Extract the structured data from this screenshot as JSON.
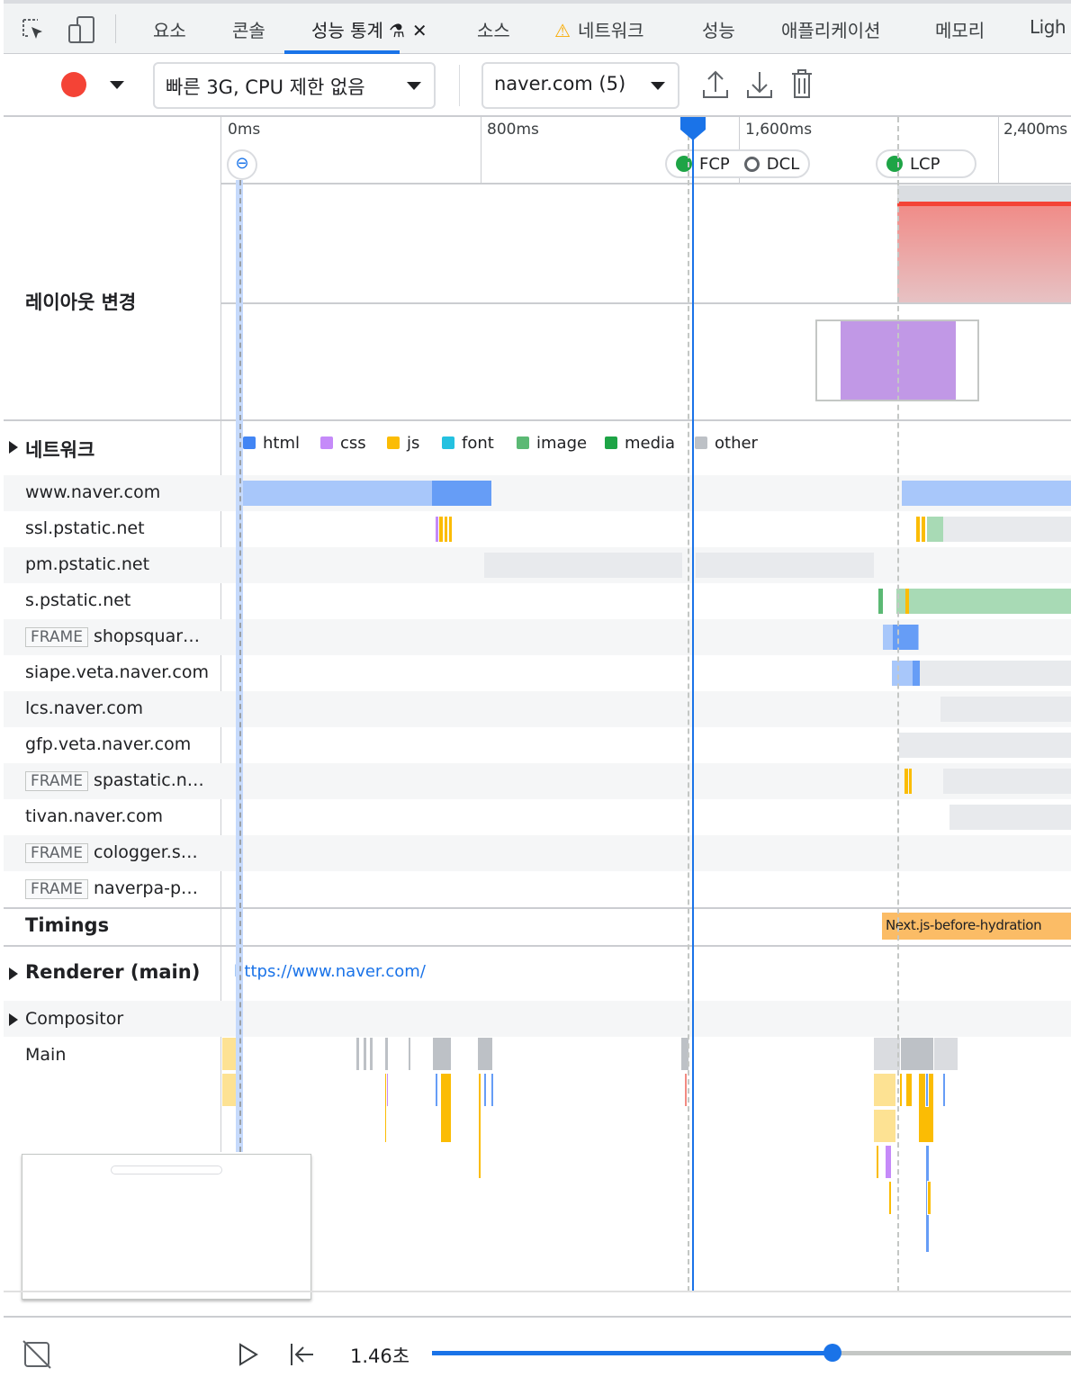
{
  "tabs": [
    {
      "label": "요소"
    },
    {
      "label": "콘솔"
    },
    {
      "label": "성능 통계",
      "active": true
    },
    {
      "label": "소스"
    },
    {
      "label": "네트워크",
      "warning": true
    },
    {
      "label": "성능"
    },
    {
      "label": "애플리케이션"
    },
    {
      "label": "메모리"
    },
    {
      "label": "Ligh"
    }
  ],
  "toolbar": {
    "throttle": "빠른 3G, CPU 제한 없음",
    "recording": "naver.com (5)",
    "record_color": "#f44336"
  },
  "ruler": {
    "ticks": [
      "0ms",
      "800ms",
      "1,600ms",
      "2,400ms"
    ],
    "markers": {
      "fcp": "FCP",
      "dcl": "DCL",
      "lcp": "LCP"
    }
  },
  "layout_shifts": {
    "label": "레이아웃 변경"
  },
  "network": {
    "label": "네트워크",
    "legend": [
      {
        "name": "html",
        "color": "#4285f4"
      },
      {
        "name": "css",
        "color": "#c58af9"
      },
      {
        "name": "js",
        "color": "#fbbc04"
      },
      {
        "name": "font",
        "color": "#24c1e0"
      },
      {
        "name": "image",
        "color": "#5bb974"
      },
      {
        "name": "media",
        "color": "#1ea446"
      },
      {
        "name": "other",
        "color": "#bdc1c6"
      }
    ],
    "rows": [
      {
        "name": "www.naver.com"
      },
      {
        "name": "ssl.pstatic.net"
      },
      {
        "name": "pm.pstatic.net"
      },
      {
        "name": "s.pstatic.net"
      },
      {
        "frame": "FRAME",
        "name": "shopsquar…"
      },
      {
        "name": "siape.veta.naver.com"
      },
      {
        "name": "lcs.naver.com"
      },
      {
        "name": "gfp.veta.naver.com"
      },
      {
        "frame": "FRAME",
        "name": "spastatic.n…"
      },
      {
        "name": "tivan.naver.com"
      },
      {
        "frame": "FRAME",
        "name": "cologger.s…"
      },
      {
        "frame": "FRAME",
        "name": "naverpa-p…"
      }
    ]
  },
  "timings": {
    "label": "Timings",
    "event": "Next.js-before-hydration"
  },
  "renderer": {
    "label": "Renderer (main)",
    "url": "https://www.naver.com/"
  },
  "compositor": {
    "label": "Compositor"
  },
  "main": {
    "label": "Main"
  },
  "playback": {
    "time": "1.46초",
    "progress": 0.7
  }
}
